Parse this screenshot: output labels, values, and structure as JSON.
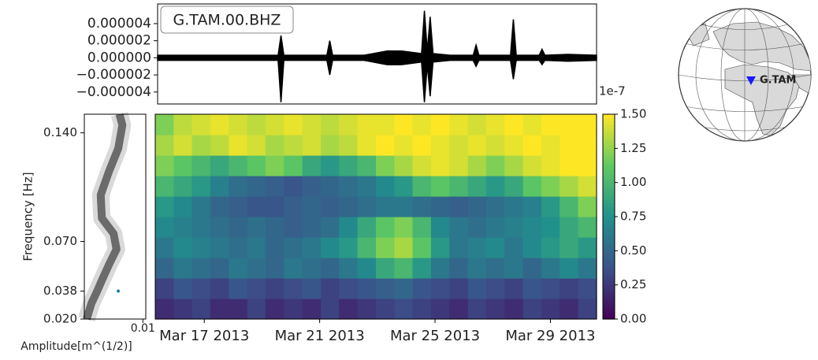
{
  "chart_data": [
    {
      "type": "line",
      "annotation": "G.TAM.00.BHZ",
      "x": [
        15.3,
        16.5,
        17.8,
        19.5,
        19.6,
        19.7,
        21.2,
        21.3,
        21.4,
        22.5,
        23.3,
        23.8,
        24.5,
        24.6,
        24.7,
        24.8,
        24.9,
        25.5,
        26.3,
        26.4,
        26.5,
        27.6,
        27.7,
        27.8,
        28.6,
        28.7,
        28.8,
        29.6,
        30.6
      ],
      "series": [
        {
          "color": "#000000",
          "values": [
            3e-07,
            3e-07,
            3e-07,
            3e-07,
            2.6e-06,
            3e-07,
            3e-07,
            2e-06,
            3e-07,
            3e-07,
            8e-07,
            8e-07,
            5e-07,
            5.5e-06,
            8e-07,
            4.8e-06,
            5e-07,
            3e-07,
            3e-07,
            1.5e-06,
            3e-07,
            3e-07,
            4.5e-06,
            3e-07,
            3e-07,
            1e-06,
            3e-07,
            4e-07,
            3e-07
          ]
        },
        {
          "color": "#000000",
          "values": [
            -3e-07,
            -3e-07,
            -3e-07,
            -3e-07,
            -5.2e-06,
            -3e-07,
            -3e-07,
            -2e-06,
            -3e-07,
            -3e-07,
            -8e-07,
            -8e-07,
            -5e-07,
            -5.2e-06,
            -8e-07,
            -4.5e-06,
            -5e-07,
            -3e-07,
            -3e-07,
            -1e-06,
            -3e-07,
            -3e-07,
            -2.5e-06,
            -3e-07,
            -3e-07,
            -8e-07,
            -3e-07,
            -4e-07,
            -3e-07
          ]
        }
      ],
      "xlim": [
        15.3,
        30.6
      ],
      "ylim": [
        -5.4e-06,
        6.3e-06
      ],
      "yticks": [
        {
          "value": 4e-06,
          "label": "0.000004"
        },
        {
          "value": 2e-06,
          "label": "0.000002"
        },
        {
          "value": 0,
          "label": "0.000000"
        },
        {
          "value": -2e-06,
          "label": "−0.000002"
        },
        {
          "value": -4e-06,
          "label": "−0.000004"
        }
      ]
    },
    {
      "type": "profile",
      "x_label": "Amplitude[m^(1/2)]",
      "y_label": "Frequency [Hz]",
      "y": [
        0.02,
        0.03,
        0.038,
        0.045,
        0.055,
        0.065,
        0.075,
        0.085,
        0.1,
        0.115,
        0.13,
        0.145,
        0.152
      ],
      "values": [
        0.0004,
        0.0012,
        0.0022,
        0.003,
        0.0042,
        0.0055,
        0.005,
        0.003,
        0.0028,
        0.0042,
        0.0058,
        0.0065,
        0.006
      ],
      "colors": [
        "#d9d9d9",
        "#6b6b6b"
      ],
      "marker": {
        "x": 0.0058,
        "y": 0.038,
        "color": "#1f77b4"
      },
      "xlim": [
        0,
        0.0105
      ],
      "xticks": [
        0.01
      ],
      "ylim": [
        0.02,
        0.152
      ],
      "yticks": [
        {
          "value": 0.14,
          "label": "0.140"
        },
        {
          "value": 0.07,
          "label": "0.070"
        },
        {
          "value": 0.038,
          "label": "0.038"
        },
        {
          "value": 0.02,
          "label": "0.020"
        }
      ]
    },
    {
      "type": "heatmap",
      "colormap": "viridis",
      "x": [
        15.62,
        16.26,
        16.89,
        17.53,
        18.17,
        18.81,
        19.44,
        20.08,
        20.72,
        21.36,
        21.99,
        22.63,
        23.27,
        23.91,
        24.54,
        25.18,
        25.82,
        26.46,
        27.09,
        27.73,
        28.37,
        29.01,
        29.64,
        30.28
      ],
      "y": [
        0.0266,
        0.0398,
        0.053,
        0.0662,
        0.0794,
        0.0926,
        0.1058,
        0.119,
        0.1322,
        0.1454
      ],
      "values": [
        [
          0.2,
          0.25,
          0.3,
          0.2,
          0.2,
          0.3,
          0.2,
          0.25,
          0.2,
          0.3,
          0.2,
          0.25,
          0.3,
          0.35,
          0.3,
          0.25,
          0.2,
          0.3,
          0.25,
          0.2,
          0.3,
          0.25,
          0.2,
          0.3
        ],
        [
          0.3,
          0.4,
          0.35,
          0.3,
          0.4,
          0.35,
          0.3,
          0.35,
          0.4,
          0.3,
          0.35,
          0.4,
          0.45,
          0.5,
          0.4,
          0.35,
          0.3,
          0.4,
          0.35,
          0.3,
          0.4,
          0.35,
          0.3,
          0.35
        ],
        [
          0.5,
          0.6,
          0.55,
          0.5,
          0.6,
          0.55,
          0.5,
          0.6,
          0.55,
          0.5,
          0.6,
          0.7,
          0.9,
          1.0,
          0.8,
          0.6,
          0.5,
          0.6,
          0.55,
          0.6,
          0.5,
          0.6,
          0.7,
          0.6
        ],
        [
          0.6,
          0.7,
          0.65,
          0.6,
          0.55,
          0.6,
          0.5,
          0.55,
          0.6,
          0.7,
          0.8,
          1.0,
          1.2,
          1.3,
          1.1,
          0.8,
          0.6,
          0.65,
          0.7,
          0.6,
          0.7,
          0.8,
          0.9,
          0.8
        ],
        [
          0.7,
          0.65,
          0.6,
          0.55,
          0.5,
          0.55,
          0.5,
          0.45,
          0.5,
          0.55,
          0.7,
          0.9,
          1.1,
          1.2,
          1.0,
          0.7,
          0.6,
          0.55,
          0.6,
          0.65,
          0.7,
          0.75,
          0.9,
          1.0
        ],
        [
          0.8,
          0.7,
          0.6,
          0.5,
          0.45,
          0.4,
          0.4,
          0.45,
          0.5,
          0.45,
          0.5,
          0.55,
          0.6,
          0.6,
          0.55,
          0.5,
          0.45,
          0.5,
          0.55,
          0.6,
          0.65,
          0.8,
          1.0,
          1.2
        ],
        [
          1.0,
          0.9,
          0.8,
          0.65,
          0.55,
          0.5,
          0.45,
          0.4,
          0.45,
          0.5,
          0.55,
          0.6,
          0.7,
          0.8,
          1.0,
          1.1,
          1.0,
          0.9,
          0.8,
          0.9,
          1.1,
          1.2,
          1.3,
          1.4
        ],
        [
          1.2,
          1.1,
          1.0,
          0.9,
          1.0,
          1.1,
          1.2,
          1.1,
          0.9,
          0.8,
          0.9,
          1.0,
          1.2,
          1.3,
          1.4,
          1.45,
          1.4,
          1.3,
          1.2,
          1.3,
          1.4,
          1.45,
          1.5,
          1.5
        ],
        [
          1.3,
          1.4,
          1.3,
          1.35,
          1.45,
          1.4,
          1.3,
          1.35,
          1.4,
          1.3,
          1.35,
          1.45,
          1.5,
          1.45,
          1.5,
          1.45,
          1.4,
          1.45,
          1.4,
          1.45,
          1.5,
          1.45,
          1.5,
          1.5
        ],
        [
          1.2,
          1.35,
          1.4,
          1.45,
          1.4,
          1.35,
          1.4,
          1.45,
          1.4,
          1.35,
          1.4,
          1.45,
          1.45,
          1.5,
          1.45,
          1.5,
          1.45,
          1.4,
          1.45,
          1.5,
          1.45,
          1.5,
          1.5,
          1.5
        ]
      ],
      "xlim": [
        15.3,
        30.6
      ],
      "ylim": [
        0.02,
        0.152
      ],
      "xticks": [
        {
          "value": 17,
          "label": "Mar 17 2013"
        },
        {
          "value": 21,
          "label": "Mar 21 2013"
        },
        {
          "value": 25,
          "label": "Mar 25 2013"
        },
        {
          "value": 29,
          "label": "Mar 29 2013"
        }
      ],
      "clim": [
        0,
        1.5
      ],
      "colorbar_offset": "1e-7",
      "cticks": [
        {
          "value": 0,
          "label": "0.00"
        },
        {
          "value": 0.25,
          "label": "0.25"
        },
        {
          "value": 0.5,
          "label": "0.50"
        },
        {
          "value": 0.75,
          "label": "0.75"
        },
        {
          "value": 1,
          "label": "1.00"
        },
        {
          "value": 1.25,
          "label": "1.25"
        },
        {
          "value": 1.5,
          "label": "1.50"
        }
      ]
    },
    {
      "type": "map",
      "station": "G.TAM",
      "color": "#1a1aff"
    }
  ]
}
